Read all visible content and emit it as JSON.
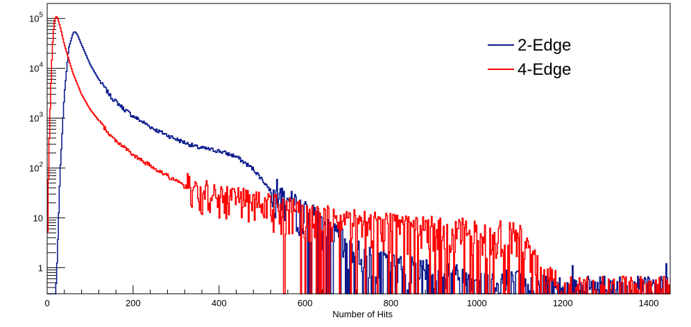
{
  "chart_data": {
    "type": "histogram",
    "title": "",
    "xlabel": "Number of Hits",
    "ylabel": "",
    "xlim": [
      0,
      1450
    ],
    "ylim": [
      0.3,
      200000
    ],
    "yscale": "log",
    "x_ticks": [
      0,
      200,
      400,
      600,
      800,
      1000,
      1200,
      1400
    ],
    "x_tick_labels": [
      "0",
      "200",
      "400",
      "600",
      "800",
      "1000",
      "1200",
      "1400"
    ],
    "y_ticks": [
      {
        "value": 1,
        "base": "1",
        "exp": ""
      },
      {
        "value": 10,
        "base": "10",
        "exp": ""
      },
      {
        "value": 100,
        "base": "10",
        "exp": "2"
      },
      {
        "value": 1000,
        "base": "10",
        "exp": "3"
      },
      {
        "value": 10000,
        "base": "10",
        "exp": "4"
      },
      {
        "value": 100000,
        "base": "10",
        "exp": "5"
      }
    ],
    "legend_position": "top-right",
    "series": [
      {
        "name": "2-Edge",
        "color": "#0a1a8c",
        "bin_width": 2,
        "noise_start": 520,
        "seed": 7,
        "points": [
          [
            0,
            0.3
          ],
          [
            20,
            0.3
          ],
          [
            24,
            2
          ],
          [
            30,
            80
          ],
          [
            40,
            3000
          ],
          [
            50,
            25000
          ],
          [
            60,
            50000
          ],
          [
            64,
            55000
          ],
          [
            70,
            48000
          ],
          [
            80,
            30000
          ],
          [
            100,
            12000
          ],
          [
            120,
            6000
          ],
          [
            150,
            2600
          ],
          [
            180,
            1500
          ],
          [
            200,
            1100
          ],
          [
            250,
            600
          ],
          [
            300,
            380
          ],
          [
            350,
            260
          ],
          [
            400,
            220
          ],
          [
            440,
            170
          ],
          [
            480,
            95
          ],
          [
            500,
            60
          ],
          [
            520,
            35
          ],
          [
            550,
            20
          ],
          [
            580,
            13
          ],
          [
            620,
            8
          ],
          [
            650,
            4.5
          ],
          [
            700,
            2.2
          ],
          [
            750,
            1.3
          ],
          [
            800,
            0.9
          ],
          [
            900,
            0.6
          ],
          [
            1000,
            0.5
          ],
          [
            1100,
            0.4
          ],
          [
            1150,
            0.35
          ],
          [
            1180,
            0.3
          ],
          [
            1200,
            0.3
          ],
          [
            1450,
            0.3
          ]
        ],
        "spikes": [
          [
            1222,
            1.1
          ],
          [
            1440,
            1.2
          ]
        ]
      },
      {
        "name": "4-Edge",
        "color": "#ff0000",
        "bin_width": 2,
        "noise_start": 250,
        "seed": 19,
        "points": [
          [
            0,
            1.5
          ],
          [
            4,
            200
          ],
          [
            8,
            3000
          ],
          [
            12,
            25000
          ],
          [
            16,
            80000
          ],
          [
            20,
            110000
          ],
          [
            24,
            105000
          ],
          [
            30,
            70000
          ],
          [
            40,
            30000
          ],
          [
            60,
            8000
          ],
          [
            80,
            3000
          ],
          [
            100,
            1500
          ],
          [
            120,
            900
          ],
          [
            150,
            420
          ],
          [
            180,
            260
          ],
          [
            200,
            180
          ],
          [
            250,
            100
          ],
          [
            300,
            55
          ],
          [
            350,
            30
          ],
          [
            400,
            22
          ],
          [
            450,
            18
          ],
          [
            500,
            15
          ],
          [
            550,
            12
          ],
          [
            600,
            10
          ],
          [
            650,
            8
          ],
          [
            700,
            7
          ],
          [
            800,
            5.5
          ],
          [
            900,
            5
          ],
          [
            1000,
            4.5
          ],
          [
            1050,
            4
          ],
          [
            1100,
            3.5
          ],
          [
            1130,
            1.5
          ],
          [
            1150,
            0.7
          ],
          [
            1200,
            0.3
          ],
          [
            1450,
            0.3
          ]
        ],
        "spikes": []
      }
    ]
  }
}
